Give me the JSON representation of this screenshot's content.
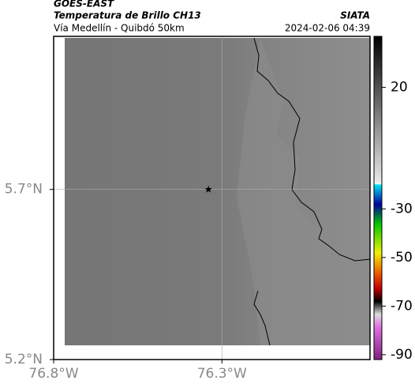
{
  "header": {
    "title": "GOES-EAST",
    "subtitle": "Temperatura de Brillo CH13",
    "route": "Vía Medellín - Quibdó 50km",
    "source": "SIATA",
    "timestamp": "2024-02-06 04:39"
  },
  "chart_data": {
    "type": "map",
    "xlim": [
      -76.8,
      -75.86
    ],
    "ylim": [
      5.2,
      6.15
    ],
    "xticks": [
      {
        "value": -76.8,
        "label": "76.8°W"
      },
      {
        "value": -76.3,
        "label": "76.3°W"
      }
    ],
    "yticks": [
      {
        "value": 5.2,
        "label": "5.2°N"
      },
      {
        "value": 5.7,
        "label": "5.7°N"
      }
    ],
    "grid": true,
    "marker": {
      "x": -76.34,
      "y": 5.7
    },
    "colorbar": {
      "lim": [
        -92,
        41
      ],
      "ticks": [
        20,
        -30,
        -50,
        -70,
        -90
      ]
    }
  }
}
